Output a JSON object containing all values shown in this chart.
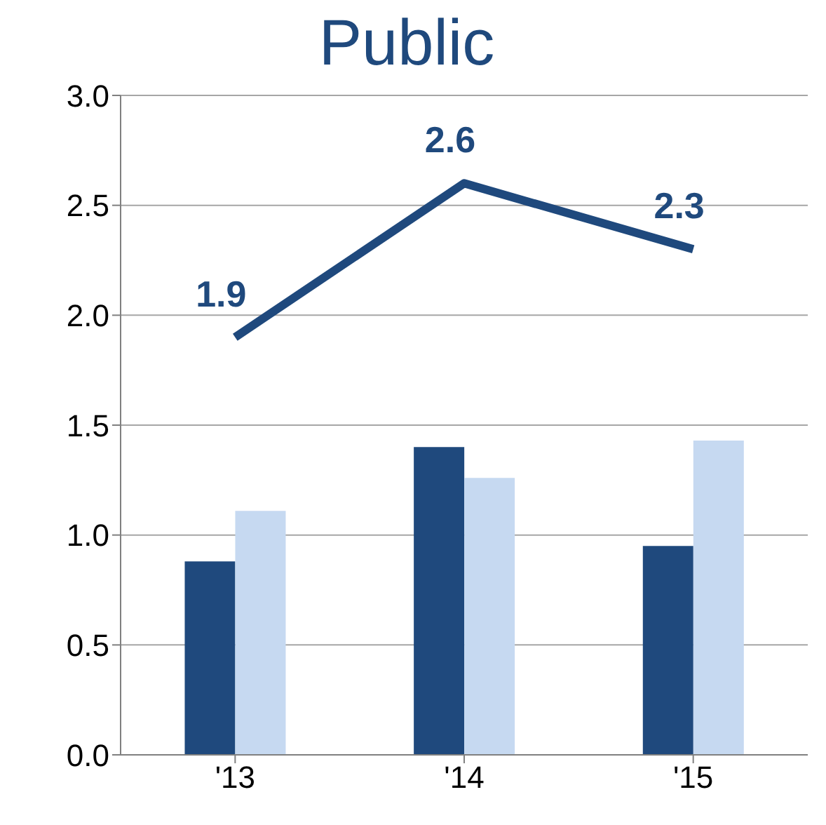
{
  "chart_data": {
    "type": "bar",
    "title": "Public",
    "categories": [
      "'13",
      "'14",
      "'15"
    ],
    "series": [
      {
        "color": "#1f497d",
        "values": [
          0.88,
          1.4,
          0.95
        ]
      },
      {
        "color": "#c6d9f1",
        "values": [
          1.11,
          1.26,
          1.43
        ]
      },
      {
        "type": "line",
        "color": "#1f497d",
        "values": [
          1.9,
          2.6,
          2.3
        ],
        "value_labels": [
          "1.9",
          "2.6",
          "2.3"
        ]
      }
    ],
    "ylim": [
      0,
      3
    ],
    "yticks": [
      {
        "value": 0,
        "label": "0.0"
      },
      0.5,
      {
        "value": 1,
        "label": "1.0"
      },
      1.5,
      {
        "value": 2,
        "label": "2.0"
      },
      2.5,
      {
        "value": 3,
        "label": "3.0"
      }
    ],
    "grid": "y",
    "legend": false
  }
}
